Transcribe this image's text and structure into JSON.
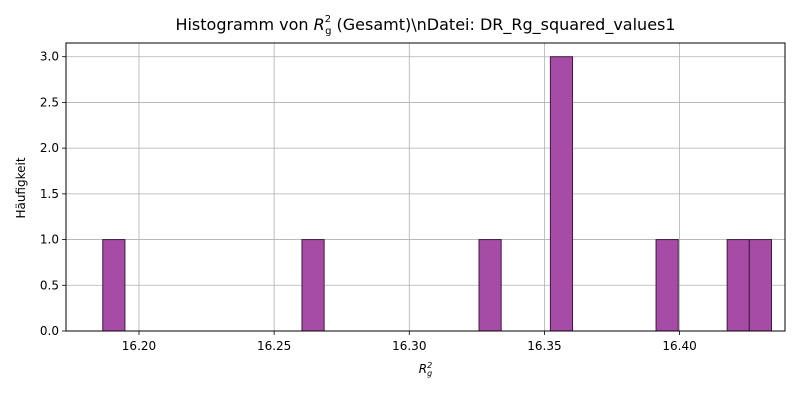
{
  "chart_data": {
    "type": "bar",
    "title": {
      "prefix": "Histogramm von ",
      "symbol": "R",
      "sup": "2",
      "sub": "g",
      "suffix": " (Gesamt)\\nDatei: DR_Rg_squared_values1"
    },
    "xlabel": {
      "symbol": "R",
      "sup": "2",
      "sub": "g"
    },
    "ylabel": "Häufigkeit",
    "xlim": [
      16.173,
      16.439
    ],
    "ylim": [
      0,
      3.15
    ],
    "xticks": [
      "16.20",
      "16.25",
      "16.30",
      "16.35",
      "16.40"
    ],
    "xtick_values": [
      16.2,
      16.25,
      16.3,
      16.35,
      16.4
    ],
    "yticks": [
      "0.0",
      "0.5",
      "1.0",
      "1.5",
      "2.0",
      "2.5",
      "3.0"
    ],
    "ytick_values": [
      0.0,
      0.5,
      1.0,
      1.5,
      2.0,
      2.5,
      3.0
    ],
    "grid": true,
    "bar_color": "#a64ca6",
    "edge_color": "#3d1a3d",
    "bins": [
      {
        "start": 16.1866,
        "end": 16.1948,
        "count": 1
      },
      {
        "start": 16.2603,
        "end": 16.2685,
        "count": 1
      },
      {
        "start": 16.3258,
        "end": 16.334,
        "count": 1
      },
      {
        "start": 16.3522,
        "end": 16.3604,
        "count": 3
      },
      {
        "start": 16.3913,
        "end": 16.3995,
        "count": 1
      },
      {
        "start": 16.4176,
        "end": 16.4258,
        "count": 1
      },
      {
        "start": 16.4258,
        "end": 16.434,
        "count": 1
      }
    ]
  }
}
